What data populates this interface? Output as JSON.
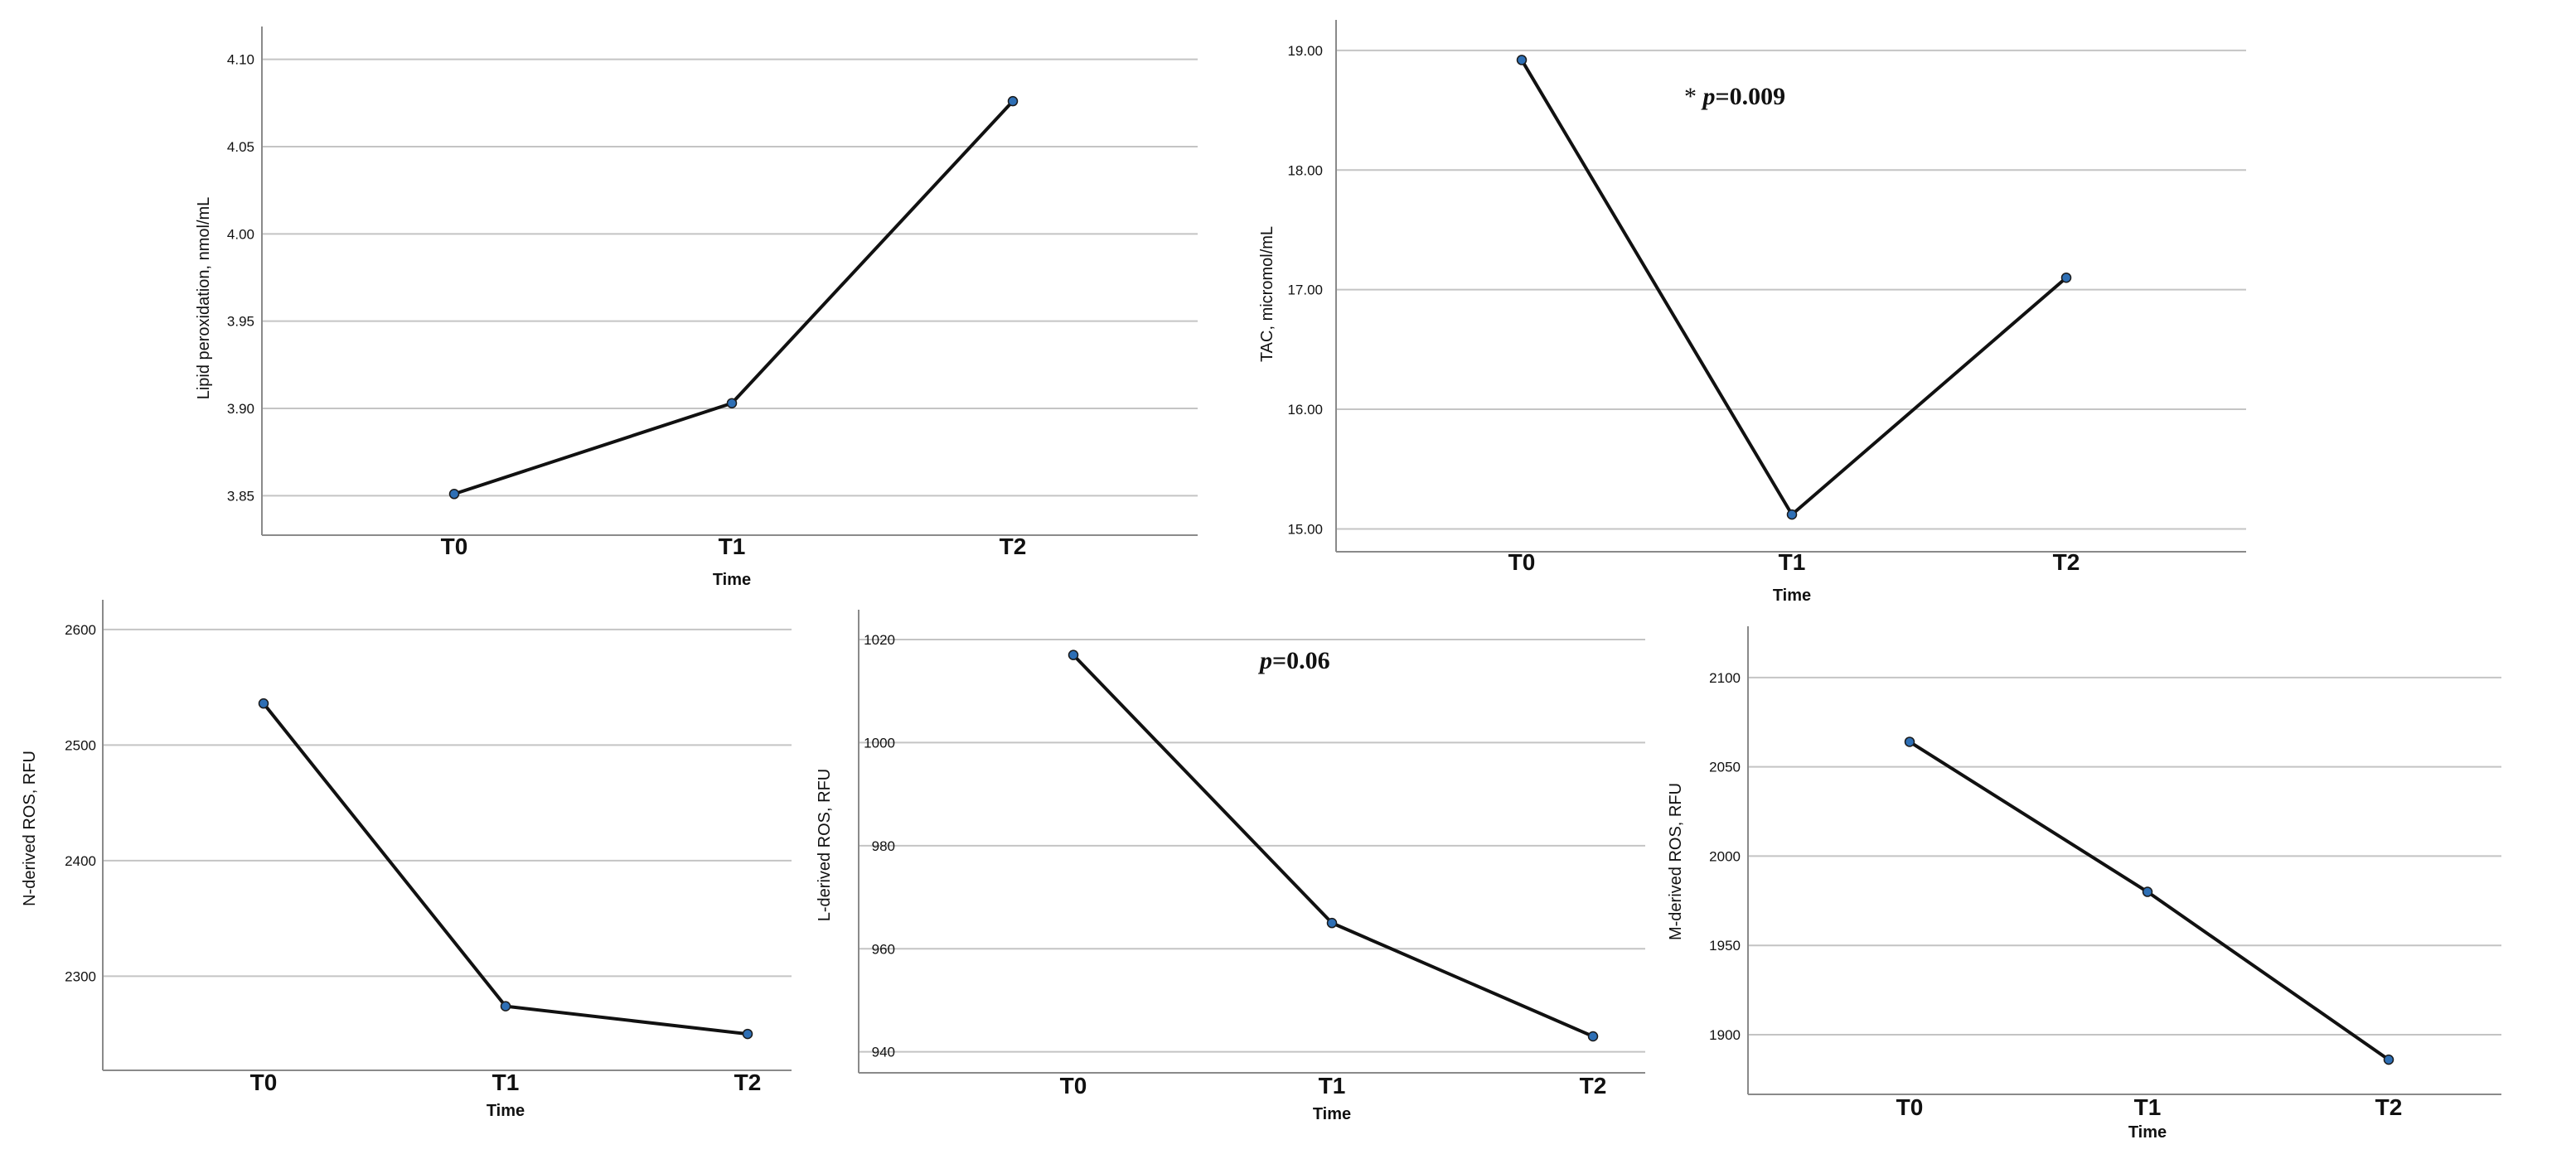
{
  "chart_data": [
    {
      "type": "line",
      "categories": [
        "T0",
        "T1",
        "T2"
      ],
      "values": [
        3.851,
        3.903,
        4.076
      ],
      "xlabel": "Time",
      "ylabel": "Lipid peroxidation, nmol/mL",
      "yticks": [
        "3.85",
        "3.90",
        "3.95",
        "4.00",
        "4.05",
        "4.10"
      ],
      "ylim": [
        3.835,
        4.115
      ],
      "grid": true,
      "line_color": "#111111",
      "marker_color": "#2e6fb5"
    },
    {
      "type": "line",
      "categories": [
        "T0",
        "T1",
        "T2"
      ],
      "values": [
        18.92,
        15.12,
        17.1
      ],
      "xlabel": "Time",
      "ylabel": "TAC, micromol/mL",
      "yticks": [
        "15.00",
        "16.00",
        "17.00",
        "18.00",
        "19.00"
      ],
      "ylim": [
        14.92,
        19.2
      ],
      "grid": true,
      "annotation": {
        "prefix": "* ",
        "italic": "p",
        "rest": "=0.009"
      },
      "line_color": "#111111",
      "marker_color": "#2e6fb5"
    },
    {
      "type": "line",
      "categories": [
        "T0",
        "T1",
        "T2"
      ],
      "values": [
        2536,
        2274,
        2250
      ],
      "xlabel": "Time",
      "ylabel": "N-derived ROS, RFU",
      "yticks": [
        "2300",
        "2400",
        "2500",
        "2600"
      ],
      "ylim": [
        2230,
        2620
      ],
      "grid": true,
      "line_color": "#111111",
      "marker_color": "#2e6fb5"
    },
    {
      "type": "line",
      "categories": [
        "T0",
        "T1",
        "T2"
      ],
      "values": [
        1017,
        965,
        943
      ],
      "xlabel": "Time",
      "ylabel": "L-derived ROS, RFU",
      "yticks": [
        "940",
        "960",
        "980",
        "1000",
        "1020"
      ],
      "ylim": [
        938.5,
        1024.5
      ],
      "grid": true,
      "annotation": {
        "prefix": "",
        "italic": "p",
        "rest": "=0.06"
      },
      "line_color": "#111111",
      "marker_color": "#2e6fb5"
    },
    {
      "type": "line",
      "categories": [
        "T0",
        "T1",
        "T2"
      ],
      "values": [
        2064,
        1980,
        1886
      ],
      "xlabel": "Time",
      "ylabel": "M-derived ROS, RFU",
      "yticks": [
        "1900",
        "1950",
        "2000",
        "2050",
        "2100"
      ],
      "ylim": [
        1874,
        2125
      ],
      "grid": true,
      "line_color": "#111111",
      "marker_color": "#2e6fb5"
    }
  ]
}
